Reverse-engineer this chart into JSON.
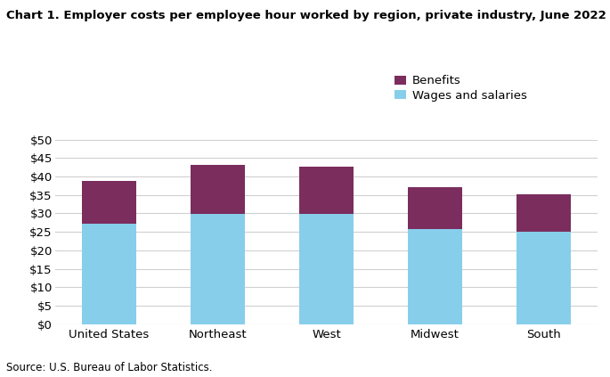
{
  "title": "Chart 1. Employer costs per employee hour worked by region, private industry, June 2022",
  "categories": [
    "United States",
    "Northeast",
    "West",
    "Midwest",
    "South"
  ],
  "wages": [
    27.17,
    29.75,
    29.97,
    25.74,
    25.1
  ],
  "benefits": [
    11.56,
    13.38,
    12.62,
    11.32,
    9.97
  ],
  "wages_color": "#87CEEB",
  "benefits_color": "#7B2D5E",
  "legend_labels": [
    "Benefits",
    "Wages and salaries"
  ],
  "ylabel_ticks": [
    0,
    5,
    10,
    15,
    20,
    25,
    30,
    35,
    40,
    45,
    50
  ],
  "ylim": [
    0,
    50
  ],
  "source_text": "Source: U.S. Bureau of Labor Statistics.",
  "background_color": "#ffffff",
  "grid_color": "#d0d0d0",
  "bar_width": 0.5
}
